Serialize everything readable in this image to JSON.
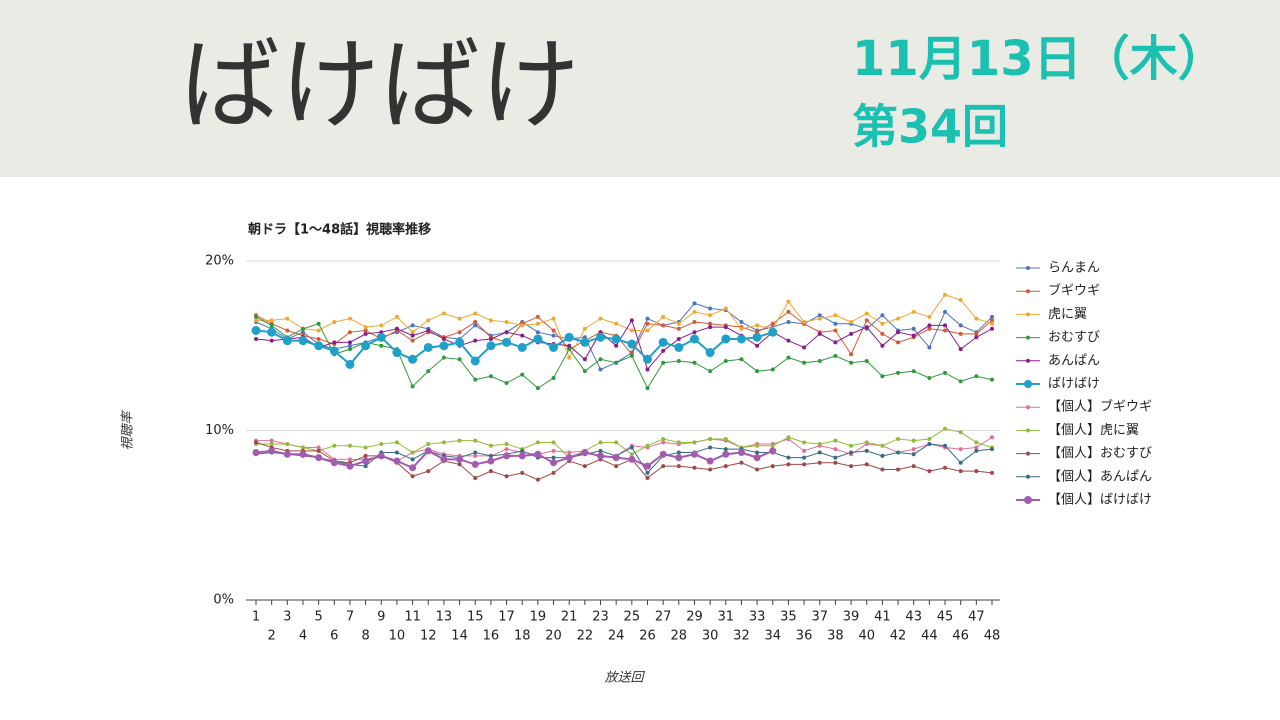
{
  "header": {
    "title": "ばけばけ",
    "date": "11月13日（木）",
    "episode": "第34回"
  },
  "chart_data": {
    "type": "line",
    "title": "朝ドラ【1〜48話】視聴率推移",
    "y_label": "視聴率",
    "x_label": "放送回",
    "x": [
      1,
      2,
      3,
      4,
      5,
      6,
      7,
      8,
      9,
      10,
      11,
      12,
      13,
      14,
      15,
      16,
      17,
      18,
      19,
      20,
      21,
      22,
      23,
      24,
      25,
      26,
      27,
      28,
      29,
      30,
      31,
      32,
      33,
      34,
      35,
      36,
      37,
      38,
      39,
      40,
      41,
      42,
      43,
      44,
      45,
      46,
      47,
      48
    ],
    "xlim": [
      1,
      48
    ],
    "ylim": [
      0,
      20
    ],
    "yticks": [
      {
        "value": 0,
        "label": "0%"
      },
      {
        "value": 10,
        "label": "10%"
      },
      {
        "value": 20,
        "label": "20%"
      }
    ],
    "grid": true,
    "legend": "right",
    "series": [
      {
        "name": "らんまん",
        "color": "#4e73be",
        "highlight": false,
        "values": [
          16.4,
          16.0,
          15.4,
          15.8,
          15.1,
          14.8,
          15.0,
          15.2,
          15.5,
          15.8,
          16.2,
          16.0,
          15.5,
          15.4,
          16.2,
          15.6,
          15.8,
          16.4,
          15.8,
          15.6,
          15.4,
          15.5,
          13.6,
          14.0,
          14.6,
          16.6,
          16.2,
          16.4,
          17.5,
          17.2,
          17.1,
          16.4,
          15.9,
          16.1,
          16.4,
          16.3,
          16.8,
          16.3,
          16.3,
          16.0,
          16.8,
          15.9,
          16.0,
          14.9,
          17.0,
          16.2,
          15.8,
          16.7
        ]
      },
      {
        "name": "ブギウギ",
        "color": "#d35a35",
        "highlight": false,
        "values": [
          16.8,
          16.3,
          15.9,
          15.6,
          15.4,
          15.1,
          15.8,
          15.9,
          15.4,
          15.9,
          15.3,
          15.8,
          15.5,
          15.8,
          16.4,
          15.5,
          15.2,
          16.3,
          16.7,
          15.9,
          14.8,
          15.3,
          15.8,
          15.6,
          14.5,
          16.3,
          16.2,
          16.0,
          16.4,
          16.3,
          16.2,
          16.1,
          15.8,
          16.3,
          17.0,
          16.3,
          15.8,
          15.9,
          14.5,
          16.5,
          15.7,
          15.2,
          15.5,
          16.0,
          15.9,
          15.7,
          15.7,
          16.5
        ]
      },
      {
        "name": "虎に翼",
        "color": "#f0a830",
        "highlight": false,
        "values": [
          16.5,
          16.5,
          16.6,
          16.0,
          15.9,
          16.4,
          16.6,
          16.1,
          16.2,
          16.7,
          15.8,
          16.5,
          16.9,
          16.6,
          16.9,
          16.5,
          16.4,
          16.2,
          16.3,
          16.6,
          14.3,
          16.0,
          16.6,
          16.3,
          15.9,
          15.9,
          16.7,
          16.3,
          17.0,
          16.8,
          17.2,
          16.0,
          16.2,
          16.0,
          17.6,
          16.4,
          16.6,
          16.8,
          16.4,
          16.9,
          16.3,
          16.6,
          17.0,
          16.7,
          18.0,
          17.7,
          16.6,
          16.3
        ]
      },
      {
        "name": "おむすび",
        "color": "#2f9a3b",
        "highlight": false,
        "values": [
          16.7,
          16.2,
          15.5,
          16.0,
          16.3,
          14.5,
          14.8,
          15.2,
          15.0,
          14.8,
          12.6,
          13.5,
          14.3,
          14.2,
          13.0,
          13.2,
          12.8,
          13.3,
          12.5,
          13.1,
          14.8,
          13.5,
          14.2,
          14.0,
          14.4,
          12.5,
          14.0,
          14.1,
          14.0,
          13.5,
          14.1,
          14.2,
          13.5,
          13.6,
          14.3,
          14.0,
          14.1,
          14.4,
          14.0,
          14.1,
          13.2,
          13.4,
          13.5,
          13.1,
          13.4,
          12.9,
          13.2,
          13.0
        ]
      },
      {
        "name": "あんぱん",
        "color": "#8b1c8b",
        "highlight": false,
        "values": [
          15.4,
          15.3,
          15.4,
          15.5,
          14.9,
          15.2,
          15.2,
          15.7,
          15.8,
          16.0,
          15.6,
          15.9,
          15.4,
          15.0,
          15.3,
          15.4,
          15.8,
          15.6,
          15.2,
          15.1,
          15.0,
          14.2,
          15.8,
          15.0,
          16.5,
          13.6,
          14.7,
          15.4,
          15.8,
          16.1,
          16.1,
          15.6,
          15.0,
          15.8,
          15.3,
          14.9,
          15.7,
          15.2,
          15.7,
          16.1,
          15.0,
          15.8,
          15.6,
          16.2,
          16.2,
          14.8,
          15.5,
          16.0
        ]
      },
      {
        "name": "ばけばけ",
        "color": "#1fa0c8",
        "highlight": true,
        "values": [
          15.9,
          15.8,
          15.3,
          15.3,
          15.0,
          14.7,
          13.9,
          15.0,
          15.5,
          14.6,
          14.2,
          14.9,
          15.0,
          15.2,
          14.1,
          15.0,
          15.2,
          14.9,
          15.4,
          14.9,
          15.5,
          15.2,
          15.5,
          15.4,
          15.1,
          14.2,
          15.2,
          14.9,
          15.4,
          14.6,
          15.4,
          15.4,
          15.5,
          15.8,
          null,
          null,
          null,
          null,
          null,
          null,
          null,
          null,
          null,
          null,
          null,
          null,
          null,
          null
        ]
      },
      {
        "name": "【個人】ブギウギ",
        "color": "#e0709a",
        "highlight": false,
        "values": [
          9.4,
          9.4,
          9.2,
          9.0,
          9.0,
          8.3,
          8.3,
          8.3,
          8.5,
          8.2,
          8.7,
          8.9,
          8.6,
          8.5,
          8.5,
          8.5,
          8.9,
          8.7,
          8.6,
          8.8,
          8.7,
          8.8,
          8.4,
          8.5,
          9.1,
          9.0,
          9.3,
          9.2,
          9.3,
          9.5,
          9.4,
          9.0,
          9.2,
          9.2,
          9.5,
          8.8,
          9.1,
          8.9,
          8.6,
          9.2,
          9.1,
          8.7,
          8.9,
          9.2,
          9.0,
          8.9,
          9.0,
          9.6
        ]
      },
      {
        "name": "【個人】虎に翼",
        "color": "#90bb3a",
        "highlight": false,
        "values": [
          9.2,
          9.2,
          9.2,
          9.0,
          8.8,
          9.1,
          9.1,
          9.0,
          9.2,
          9.3,
          8.7,
          9.2,
          9.3,
          9.4,
          9.4,
          9.1,
          9.2,
          8.9,
          9.3,
          9.3,
          8.4,
          8.8,
          9.3,
          9.3,
          8.6,
          9.1,
          9.5,
          9.3,
          9.3,
          9.5,
          9.5,
          9.0,
          9.1,
          9.1,
          9.6,
          9.3,
          9.2,
          9.4,
          9.1,
          9.3,
          9.1,
          9.5,
          9.4,
          9.5,
          10.1,
          9.9,
          9.3,
          9.0
        ]
      },
      {
        "name": "【個人】おむすび",
        "color": "#a04848",
        "highlight": false,
        "values": [
          9.3,
          9.0,
          8.8,
          8.8,
          8.8,
          8.2,
          8.1,
          8.5,
          8.5,
          8.1,
          7.3,
          7.6,
          8.2,
          8.0,
          7.2,
          7.6,
          7.3,
          7.5,
          7.1,
          7.5,
          8.2,
          7.9,
          8.3,
          7.9,
          8.3,
          7.2,
          7.9,
          7.9,
          7.8,
          7.7,
          7.9,
          8.1,
          7.7,
          7.9,
          8.0,
          8.0,
          8.1,
          8.1,
          7.9,
          8.0,
          7.7,
          7.7,
          7.9,
          7.6,
          7.8,
          7.6,
          7.6,
          7.5
        ]
      },
      {
        "name": "【個人】あんぱん",
        "color": "#3b6a87",
        "highlight": false,
        "values": [
          8.6,
          8.7,
          8.6,
          8.5,
          8.4,
          8.2,
          8.0,
          7.9,
          8.7,
          8.7,
          8.3,
          8.8,
          8.5,
          8.4,
          8.7,
          8.5,
          8.6,
          8.8,
          8.4,
          8.4,
          8.4,
          8.6,
          8.8,
          8.5,
          9.0,
          7.5,
          8.5,
          8.7,
          8.7,
          9.0,
          8.9,
          8.9,
          8.7,
          8.7,
          8.4,
          8.4,
          8.7,
          8.4,
          8.7,
          8.8,
          8.5,
          8.7,
          8.6,
          9.2,
          9.1,
          8.1,
          8.8,
          8.9
        ]
      },
      {
        "name": "【個人】ばけばけ",
        "color": "#a35bb0",
        "highlight": true,
        "values": [
          8.7,
          8.8,
          8.6,
          8.6,
          8.4,
          8.1,
          7.9,
          8.2,
          8.5,
          8.2,
          7.8,
          8.8,
          8.3,
          8.3,
          8.0,
          8.2,
          8.5,
          8.5,
          8.6,
          8.1,
          8.4,
          8.7,
          8.5,
          8.4,
          8.3,
          7.9,
          8.6,
          8.4,
          8.6,
          8.2,
          8.6,
          8.7,
          8.4,
          8.8,
          null,
          null,
          null,
          null,
          null,
          null,
          null,
          null,
          null,
          null,
          null,
          null,
          null,
          null
        ]
      }
    ]
  }
}
